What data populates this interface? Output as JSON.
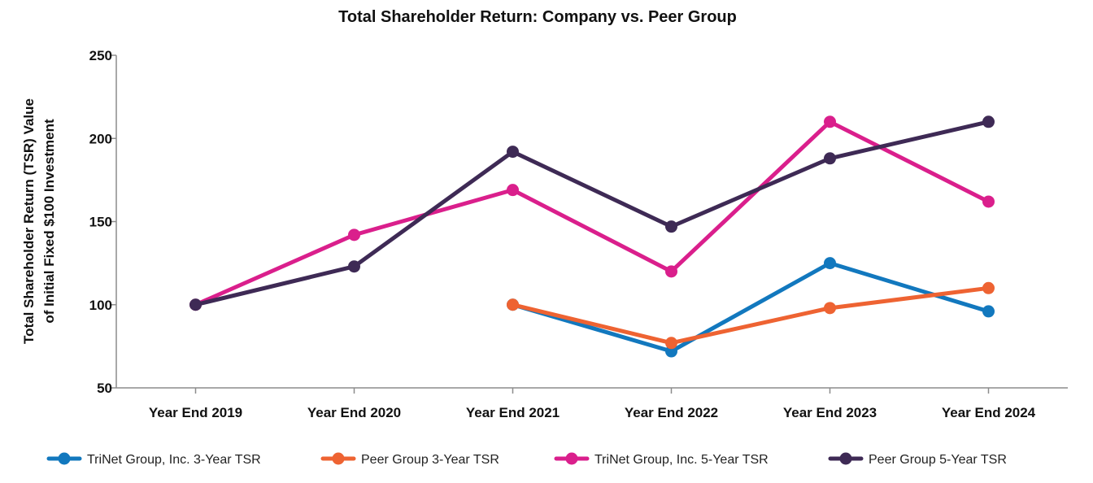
{
  "chart_data": {
    "type": "line",
    "title": "Total Shareholder Return: Company vs. Peer Group",
    "xlabel": "",
    "ylabel_lines": [
      "Total Shareholder Return (TSR)  Value",
      "of Initial Fixed $100 Investment"
    ],
    "categories": [
      "Year End 2019",
      "Year End 2020",
      "Year End 2021",
      "Year End 2022",
      "Year End 2023",
      "Year End 2024"
    ],
    "ylim": [
      50,
      250
    ],
    "yticks": [
      50,
      100,
      150,
      200,
      250
    ],
    "grid": false,
    "legend_position": "bottom",
    "series": [
      {
        "name": "TriNet Group, Inc. 3-Year TSR",
        "color": "#1278BE",
        "values": [
          null,
          null,
          100,
          72,
          125,
          96
        ]
      },
      {
        "name": "Peer Group 3-Year TSR",
        "color": "#EE6332",
        "values": [
          null,
          null,
          100,
          77,
          98,
          110
        ]
      },
      {
        "name": "TriNet Group, Inc. 5-Year TSR",
        "color": "#DA1F8C",
        "values": [
          100,
          142,
          169,
          120,
          210,
          162
        ]
      },
      {
        "name": "Peer Group 5-Year TSR",
        "color": "#3E2A55",
        "values": [
          100,
          123,
          192,
          147,
          188,
          210
        ]
      }
    ]
  }
}
